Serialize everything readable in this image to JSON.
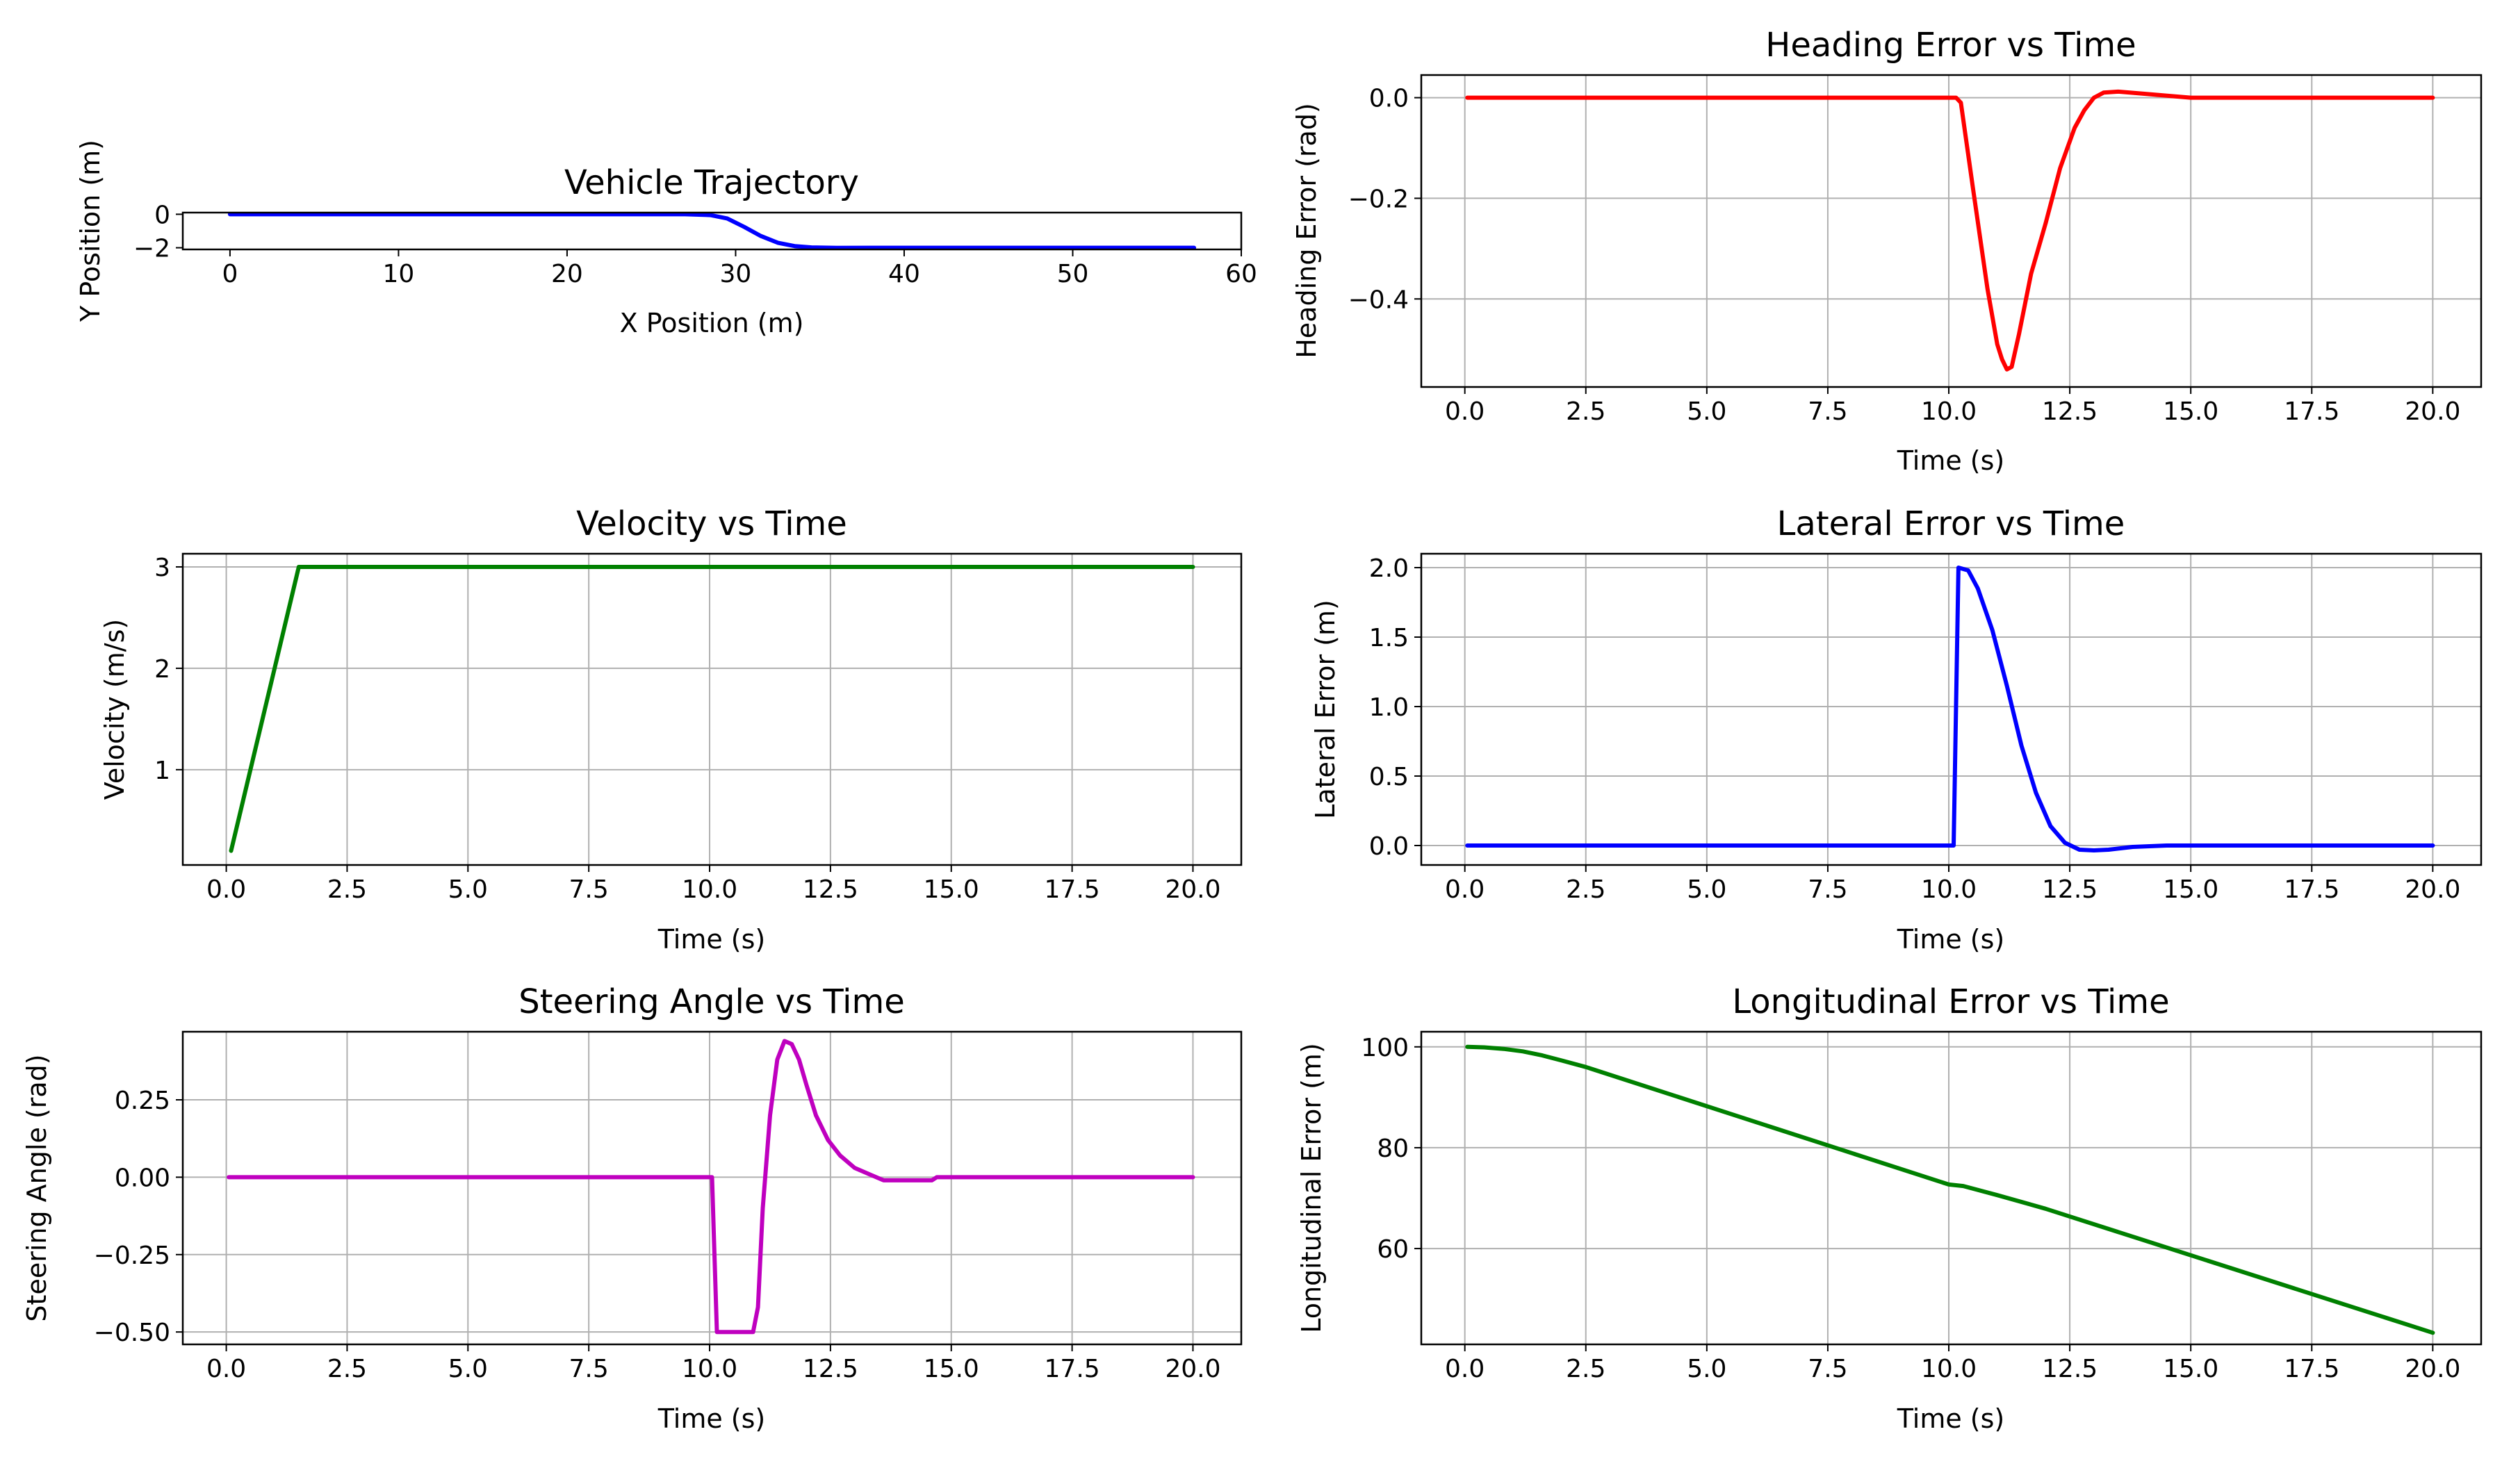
{
  "chart_data": [
    {
      "id": "trajectory",
      "type": "line",
      "title": "Vehicle Trajectory",
      "xlabel": "X Position (m)",
      "ylabel": "Y Position (m)",
      "xlim": [
        -2.8,
        60
      ],
      "ylim": [
        -2.1,
        0.1
      ],
      "xticks": [
        0,
        10,
        20,
        30,
        40,
        50,
        60
      ],
      "yticks": [
        0,
        -2
      ],
      "grid": false,
      "series": [
        {
          "color": "#0000ff",
          "x": [
            0,
            10,
            20,
            27,
            28.5,
            29.5,
            30.5,
            31.5,
            32.5,
            33.5,
            34.5,
            36,
            38,
            40,
            45,
            50,
            57.2
          ],
          "y": [
            0,
            0,
            0,
            0,
            -0.05,
            -0.25,
            -0.75,
            -1.3,
            -1.7,
            -1.9,
            -1.98,
            -2.01,
            -2.0,
            -2.0,
            -2.0,
            -2.0,
            -2.0
          ]
        }
      ]
    },
    {
      "id": "heading",
      "type": "line",
      "title": "Heading Error vs Time",
      "xlabel": "Time (s)",
      "ylabel": "Heading Error (rad)",
      "xlim": [
        -0.9,
        21.0
      ],
      "ylim": [
        -0.575,
        0.045
      ],
      "xticks": [
        0.0,
        2.5,
        5.0,
        7.5,
        10.0,
        12.5,
        15.0,
        17.5,
        20.0
      ],
      "yticks": [
        0.0,
        -0.2,
        -0.4
      ],
      "grid": true,
      "series": [
        {
          "color": "#ff0000",
          "x": [
            0.05,
            10.15,
            10.25,
            10.5,
            10.8,
            11.0,
            11.1,
            11.2,
            11.3,
            11.45,
            11.7,
            12.0,
            12.3,
            12.6,
            12.8,
            13.0,
            13.2,
            13.5,
            14.0,
            15.0,
            20.0
          ],
          "y": [
            0.0,
            0.0,
            -0.01,
            -0.18,
            -0.38,
            -0.49,
            -0.52,
            -0.54,
            -0.535,
            -0.47,
            -0.35,
            -0.25,
            -0.14,
            -0.06,
            -0.025,
            0.0,
            0.01,
            0.012,
            0.008,
            0.0,
            0.0
          ]
        }
      ]
    },
    {
      "id": "velocity",
      "type": "line",
      "title": "Velocity vs Time",
      "xlabel": "Time (s)",
      "ylabel": "Velocity (m/s)",
      "xlim": [
        -0.9,
        21.0
      ],
      "ylim": [
        0.06,
        3.13
      ],
      "xticks": [
        0.0,
        2.5,
        5.0,
        7.5,
        10.0,
        12.5,
        15.0,
        17.5,
        20.0
      ],
      "yticks": [
        1,
        2,
        3
      ],
      "grid": true,
      "series": [
        {
          "color": "#008000",
          "x": [
            0.1,
            1.5,
            20.0
          ],
          "y": [
            0.2,
            3.0,
            3.0
          ]
        }
      ]
    },
    {
      "id": "lateral",
      "type": "line",
      "title": "Lateral Error vs Time",
      "xlabel": "Time (s)",
      "ylabel": "Lateral Error (m)",
      "xlim": [
        -0.9,
        21.0
      ],
      "ylim": [
        -0.14,
        2.1
      ],
      "xticks": [
        0.0,
        2.5,
        5.0,
        7.5,
        10.0,
        12.5,
        15.0,
        17.5,
        20.0
      ],
      "yticks": [
        0.0,
        0.5,
        1.0,
        1.5,
        2.0
      ],
      "grid": true,
      "series": [
        {
          "color": "#0000ff",
          "x": [
            0.05,
            10.1,
            10.2,
            10.4,
            10.6,
            10.9,
            11.2,
            11.5,
            11.8,
            12.1,
            12.4,
            12.7,
            13.0,
            13.3,
            13.8,
            14.5,
            15.0,
            20.0
          ],
          "y": [
            0.0,
            0.0,
            2.0,
            1.98,
            1.85,
            1.55,
            1.15,
            0.72,
            0.38,
            0.14,
            0.02,
            -0.03,
            -0.035,
            -0.03,
            -0.01,
            0.0,
            0.0,
            0.0
          ]
        }
      ]
    },
    {
      "id": "steering",
      "type": "line",
      "title": "Steering Angle vs Time",
      "xlabel": "Time (s)",
      "ylabel": "Steering Angle (rad)",
      "xlim": [
        -0.9,
        21.0
      ],
      "ylim": [
        -0.54,
        0.47
      ],
      "xticks": [
        0.0,
        2.5,
        5.0,
        7.5,
        10.0,
        12.5,
        15.0,
        17.5,
        20.0
      ],
      "yticks": [
        0.25,
        0.0,
        -0.25,
        -0.5
      ],
      "grid": true,
      "series": [
        {
          "color": "#bf00bf",
          "x": [
            0.05,
            10.05,
            10.15,
            10.25,
            10.9,
            11.0,
            11.1,
            11.25,
            11.4,
            11.55,
            11.7,
            11.85,
            12.0,
            12.2,
            12.45,
            12.7,
            13.0,
            13.3,
            13.6,
            14.6,
            14.7,
            20.0
          ],
          "y": [
            0.0,
            0.0,
            -0.5,
            -0.5,
            -0.5,
            -0.42,
            -0.1,
            0.2,
            0.38,
            0.44,
            0.43,
            0.38,
            0.3,
            0.2,
            0.12,
            0.07,
            0.03,
            0.01,
            -0.01,
            -0.01,
            0.0,
            0.0
          ]
        }
      ]
    },
    {
      "id": "longitudinal",
      "type": "line",
      "title": "Longitudinal Error vs Time",
      "xlabel": "Time (s)",
      "ylabel": "Longitudinal Error (m)",
      "xlim": [
        -0.9,
        21.0
      ],
      "ylim": [
        41,
        103
      ],
      "xticks": [
        0.0,
        2.5,
        5.0,
        7.5,
        10.0,
        12.5,
        15.0,
        17.5,
        20.0
      ],
      "yticks": [
        60,
        80,
        100
      ],
      "grid": true,
      "series": [
        {
          "color": "#008000",
          "x": [
            0.05,
            0.4,
            0.8,
            1.2,
            1.6,
            2.0,
            2.5,
            10.0,
            10.3,
            11.0,
            12.0,
            20.0
          ],
          "y": [
            100.0,
            99.9,
            99.6,
            99.1,
            98.3,
            97.3,
            96.0,
            72.7,
            72.4,
            70.6,
            67.9,
            43.3
          ]
        }
      ]
    }
  ]
}
